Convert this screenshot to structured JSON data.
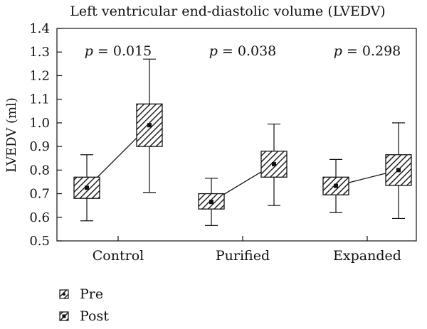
{
  "chart_data": {
    "type": "box",
    "title": "Left ventricular end-diastolic volume (LVEDV)",
    "ylabel": "LVEDV (ml)",
    "xlabel": "",
    "ylim": [
      0.5,
      1.4
    ],
    "yticks": [
      "0.5",
      "0.6",
      "0.7",
      "0.8",
      "0.9",
      "1.0",
      "1.1",
      "1.2",
      "1.3",
      "1.4"
    ],
    "grid": false,
    "legend_position": "bottom-left",
    "hatch_color": "#222222",
    "series": [
      {
        "name": "Pre",
        "marker": "dot"
      },
      {
        "name": "Post",
        "marker": "square"
      }
    ],
    "groups": [
      {
        "category": "Control",
        "p_label": "p",
        "p_value": " = 0.015",
        "pre": {
          "whisker_low": 0.585,
          "q1": 0.68,
          "median": 0.725,
          "q3": 0.77,
          "whisker_high": 0.865
        },
        "post": {
          "whisker_low": 0.705,
          "q1": 0.9,
          "median": 0.99,
          "q3": 1.08,
          "whisker_high": 1.27
        }
      },
      {
        "category": "Purified",
        "p_label": "p",
        "p_value": " = 0.038",
        "pre": {
          "whisker_low": 0.565,
          "q1": 0.635,
          "median": 0.665,
          "q3": 0.7,
          "whisker_high": 0.765
        },
        "post": {
          "whisker_low": 0.65,
          "q1": 0.77,
          "median": 0.825,
          "q3": 0.88,
          "whisker_high": 0.995
        }
      },
      {
        "category": "Expanded",
        "p_label": "p",
        "p_value": " = 0.298",
        "pre": {
          "whisker_low": 0.62,
          "q1": 0.695,
          "median": 0.733,
          "q3": 0.77,
          "whisker_high": 0.845
        },
        "post": {
          "whisker_low": 0.595,
          "q1": 0.735,
          "median": 0.8,
          "q3": 0.865,
          "whisker_high": 1.0
        }
      }
    ]
  }
}
